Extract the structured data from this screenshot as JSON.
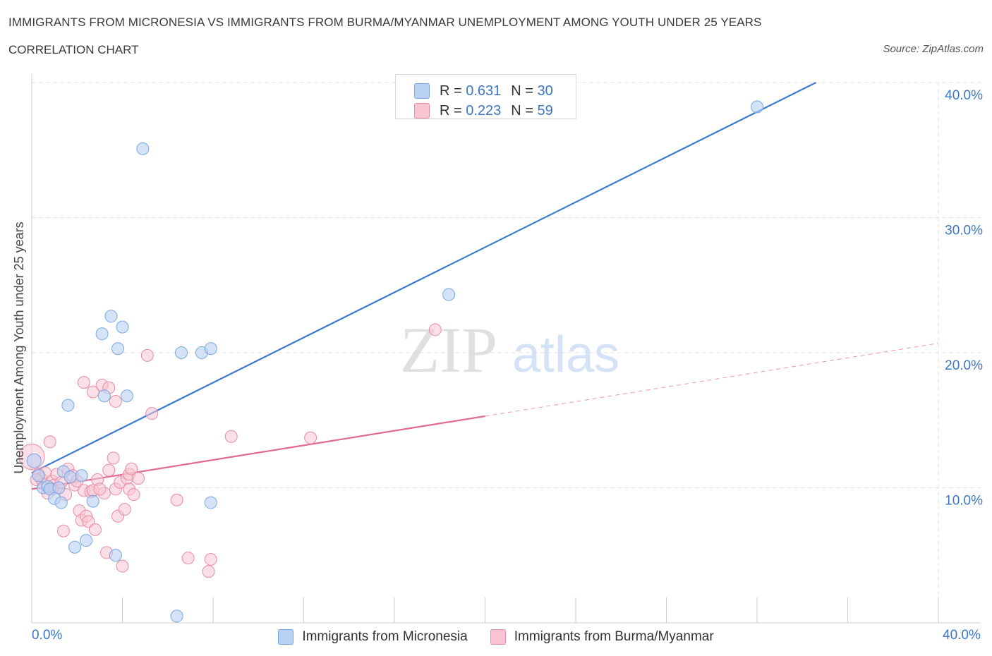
{
  "title": "IMMIGRANTS FROM MICRONESIA VS IMMIGRANTS FROM BURMA/MYANMAR UNEMPLOYMENT AMONG YOUTH UNDER 25 YEARS",
  "subtitle": "CORRELATION CHART",
  "source": "Source: ZipAtlas.com",
  "watermark": {
    "zip": "ZIP",
    "atlas": "atlas"
  },
  "legend": {
    "r_label": "R =",
    "n_label": "N =",
    "rows": [
      {
        "r": "0.631",
        "n": "30",
        "color": "#b9d1f3"
      },
      {
        "r": "0.223",
        "n": "59",
        "color": "#f8c4d2"
      }
    ]
  },
  "colors": {
    "blue_fill": "#b9d1f3",
    "blue_stroke": "#7aa6e0",
    "blue_line": "#3a7bd0",
    "pink_fill": "#f8c4d2",
    "pink_stroke": "#e88aa8",
    "pink_line": "#e06a92",
    "grid": "#e3e3e3",
    "tick_label": "#3a76c6"
  },
  "chart_data": {
    "type": "scatter",
    "title": "IMMIGRANTS FROM MICRONESIA VS IMMIGRANTS FROM BURMA/MYANMAR UNEMPLOYMENT AMONG YOUTH UNDER 25 YEARS",
    "xlabel": "",
    "ylabel": "Unemployment Among Youth under 25 years",
    "xlim": [
      0,
      40
    ],
    "ylim": [
      0,
      40
    ],
    "x_tick_labels": [
      "0.0%",
      "40.0%"
    ],
    "y_ticks": [
      10,
      20,
      30,
      40
    ],
    "y_tick_labels": [
      "10.0%",
      "20.0%",
      "30.0%",
      "40.0%"
    ],
    "grid": true,
    "legend_placement": "top-center",
    "series": [
      {
        "name": "Immigrants from Micronesia",
        "color": "#b9d1f3",
        "r": 0.631,
        "n": 30,
        "trend": {
          "x": [
            0,
            34.6
          ],
          "y": [
            11.1,
            40.0
          ]
        },
        "points": [
          [
            0.1,
            12.0
          ],
          [
            0.5,
            10.0
          ],
          [
            0.7,
            10.1
          ],
          [
            0.8,
            9.9
          ],
          [
            1.0,
            9.2
          ],
          [
            1.2,
            10.0
          ],
          [
            1.3,
            8.9
          ],
          [
            1.4,
            11.2
          ],
          [
            1.6,
            16.1
          ],
          [
            1.7,
            10.8
          ],
          [
            1.9,
            5.6
          ],
          [
            2.2,
            10.9
          ],
          [
            2.4,
            6.1
          ],
          [
            2.7,
            9.0
          ],
          [
            3.1,
            21.4
          ],
          [
            3.2,
            16.8
          ],
          [
            3.5,
            22.7
          ],
          [
            3.7,
            5.0
          ],
          [
            3.8,
            20.3
          ],
          [
            4.0,
            21.9
          ],
          [
            4.2,
            16.8
          ],
          [
            4.9,
            35.1
          ],
          [
            6.4,
            0.5
          ],
          [
            6.6,
            20.0
          ],
          [
            7.5,
            20.0
          ],
          [
            7.9,
            20.3
          ],
          [
            7.9,
            8.9
          ],
          [
            18.4,
            24.3
          ],
          [
            32.0,
            38.2
          ],
          [
            0.3,
            10.9
          ]
        ]
      },
      {
        "name": "Immigrants from Burma/Myanmar",
        "color": "#f8c4d2",
        "r": 0.223,
        "n": 59,
        "trend": {
          "x": [
            0,
            20.0
          ],
          "y": [
            9.9,
            15.3
          ]
        },
        "trend_dashed": {
          "x": [
            20.0,
            40.0
          ],
          "y": [
            15.3,
            20.7
          ]
        },
        "points": [
          [
            0.0,
            12.3
          ],
          [
            0.3,
            11.0
          ],
          [
            0.4,
            10.7
          ],
          [
            0.5,
            10.3
          ],
          [
            0.6,
            11.1
          ],
          [
            0.7,
            9.6
          ],
          [
            0.8,
            13.4
          ],
          [
            0.9,
            10.5
          ],
          [
            1.0,
            10.2
          ],
          [
            1.1,
            11.0
          ],
          [
            1.2,
            10.0
          ],
          [
            1.3,
            10.4
          ],
          [
            1.4,
            6.8
          ],
          [
            1.5,
            9.5
          ],
          [
            1.6,
            11.4
          ],
          [
            1.8,
            10.9
          ],
          [
            1.9,
            10.2
          ],
          [
            2.1,
            8.3
          ],
          [
            2.2,
            7.6
          ],
          [
            2.3,
            17.8
          ],
          [
            2.3,
            9.8
          ],
          [
            2.4,
            7.9
          ],
          [
            2.5,
            7.5
          ],
          [
            2.6,
            9.7
          ],
          [
            2.7,
            9.8
          ],
          [
            2.7,
            17.1
          ],
          [
            2.8,
            6.9
          ],
          [
            2.9,
            10.6
          ],
          [
            3.1,
            17.6
          ],
          [
            3.2,
            9.6
          ],
          [
            3.3,
            5.2
          ],
          [
            3.4,
            17.4
          ],
          [
            3.4,
            11.3
          ],
          [
            3.6,
            12.2
          ],
          [
            3.7,
            9.9
          ],
          [
            3.7,
            16.4
          ],
          [
            3.8,
            7.9
          ],
          [
            3.9,
            10.4
          ],
          [
            4.0,
            4.2
          ],
          [
            4.1,
            8.4
          ],
          [
            4.2,
            10.7
          ],
          [
            4.3,
            11.0
          ],
          [
            4.3,
            9.9
          ],
          [
            4.4,
            11.4
          ],
          [
            4.5,
            9.5
          ],
          [
            4.7,
            10.7
          ],
          [
            5.1,
            19.8
          ],
          [
            5.3,
            15.5
          ],
          [
            6.4,
            9.1
          ],
          [
            6.9,
            4.8
          ],
          [
            7.8,
            3.8
          ],
          [
            7.9,
            4.7
          ],
          [
            8.8,
            13.8
          ],
          [
            12.3,
            13.7
          ],
          [
            17.8,
            21.7
          ],
          [
            0.2,
            10.6
          ],
          [
            0.9,
            9.9
          ],
          [
            2.0,
            10.5
          ],
          [
            3.0,
            9.9
          ]
        ]
      }
    ]
  }
}
